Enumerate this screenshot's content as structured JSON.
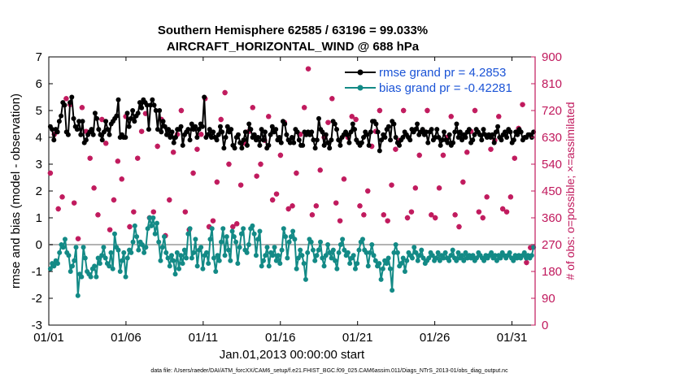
{
  "chart_data": {
    "type": "line",
    "title": "Southern Hemisphere 62585 / 63196 = 99.033%",
    "subtitle": "AIRCRAFT_HORIZONTAL_WIND @ 688 hPa",
    "xlabel": "Jan.01,2013 00:00:00 start",
    "ylabel": "rmse and bias (model - observation)",
    "y2label": "# of obs: o=possible; ×=assimilated",
    "footnote": "data file: /Users/raeder/DAI/ATM_forcXX/CAM6_setup/f.e21.FHIST_BGC.f09_025.CAM6assim.011/Diags_NTrS_2013-01/obs_diag_output.nc",
    "xlim": [
      0,
      31.5
    ],
    "ylim": [
      -3,
      7
    ],
    "y2lim": [
      0,
      900
    ],
    "x_ticks": [
      0,
      5,
      10,
      15,
      20,
      25,
      30
    ],
    "x_tick_labels": [
      "01/01",
      "01/06",
      "01/11",
      "01/16",
      "01/21",
      "01/26",
      "01/31"
    ],
    "y_ticks": [
      -3,
      -2,
      -1,
      0,
      1,
      2,
      3,
      4,
      5,
      6,
      7
    ],
    "y2_ticks": [
      0,
      90,
      180,
      270,
      360,
      450,
      540,
      630,
      720,
      810,
      900
    ],
    "colors": {
      "rmse": "#000000",
      "bias": "#138a86",
      "obs": "#c0185c",
      "zero_line": "#b3b3b3",
      "legend_text": "#1a53d6"
    },
    "series": [
      {
        "name": "rmse grand pr = 4.2853",
        "values": [
          4.4,
          4.3,
          3.9,
          4.3,
          4.2,
          4.6,
          4.8,
          5.3,
          5.2,
          4.2,
          4.1,
          5.3,
          5.5,
          4.7,
          4.4,
          4.3,
          4.6,
          4.1,
          4.6,
          3.8,
          3.9,
          4.1,
          4.2,
          4.3,
          4.1,
          4.9,
          4.7,
          4.3,
          4.1,
          3.9,
          4.2,
          4.6,
          4.3,
          4.1,
          4.5,
          4.6,
          4.7,
          4.8,
          5.4,
          4.0,
          4.1,
          4.0,
          4.0,
          4.9,
          4.4,
          4.7,
          5.0,
          4.6,
          4.8,
          4.9,
          5.3,
          5.1,
          5.4,
          5.3,
          5.2,
          4.3,
          5.2,
          5.4,
          5.2,
          5.0,
          4.3,
          5.0,
          4.2,
          4.6,
          4.4,
          4.1,
          4.3,
          4.0,
          4.2,
          3.8,
          4.0,
          4.3,
          4.3,
          4.4,
          3.7,
          4.1,
          4.2,
          4.3,
          3.9,
          4.5,
          4.3,
          4.4,
          4.0,
          4.3,
          4.5,
          4.4,
          5.5,
          4.0,
          4.1,
          4.3,
          4.0,
          4.2,
          4.0,
          3.9,
          4.1,
          4.4,
          4.2,
          3.6,
          4.0,
          4.4,
          4.2,
          4.3,
          3.7,
          3.6,
          4.0,
          4.1,
          3.8,
          3.6,
          3.9,
          4.2,
          3.7,
          4.5,
          4.3,
          4.0,
          4.1,
          3.9,
          4.0,
          3.7,
          4.3,
          3.9,
          4.2,
          3.6,
          3.7,
          4.1,
          4.4,
          4.2,
          4.3,
          3.9,
          4.0,
          3.8,
          4.6,
          4.5,
          4.1,
          3.9,
          3.8,
          4.0,
          3.8,
          4.3,
          4.2,
          3.9,
          3.7,
          3.7,
          4.2,
          4.1,
          4.2,
          4.1,
          4.2,
          3.9,
          3.6,
          3.9,
          4.7,
          4.3,
          4.2,
          3.7,
          4.1,
          3.8,
          3.6,
          3.9,
          4.6,
          4.5,
          4.3,
          3.9,
          3.7,
          4.0,
          4.1,
          4.2,
          4.1,
          3.8,
          4.2,
          4.5,
          4.3,
          3.9,
          3.8,
          3.7,
          3.8,
          4.0,
          4.2,
          4.1,
          3.7,
          4.2,
          4.6,
          4.6,
          4.5,
          4.2,
          3.5,
          3.9,
          4.1,
          4.0,
          4.3,
          4.4,
          3.9,
          4.6,
          4.5,
          4.0,
          3.8,
          3.7,
          3.9,
          4.0,
          4.2,
          4.1,
          4.0,
          3.9,
          4.3,
          4.2,
          4.3,
          4.5,
          4.1,
          4.2,
          4.3,
          4.1,
          4.2,
          3.8,
          4.2,
          4.3,
          3.9,
          4.0,
          4.3,
          4.0,
          3.7,
          3.9,
          4.2,
          3.9,
          3.8,
          4.1,
          3.7,
          3.8,
          4.2,
          4.5,
          4.0,
          4.2,
          3.9,
          4.1,
          4.0,
          4.2,
          4.3,
          3.8,
          3.9,
          4.1,
          4.3,
          4.2,
          4.1,
          3.9,
          4.3,
          4.1,
          4.0,
          4.1,
          4.0,
          4.1,
          3.8,
          4.2,
          4.4,
          4.0,
          3.9,
          4.1,
          4.2,
          4.0,
          4.3,
          4.2,
          3.8,
          3.9,
          4.2,
          4.1,
          4.3,
          4.2,
          3.9,
          4.0,
          4.0,
          4.1,
          4.1,
          4.0,
          4.2
        ]
      },
      {
        "name": "bias grand pr = -0.42281",
        "values": [
          -0.9,
          -0.7,
          -0.8,
          -0.6,
          -0.7,
          -0.3,
          0.0,
          -0.1,
          0.2,
          -0.3,
          -0.4,
          -1.0,
          -0.8,
          -0.6,
          -0.1,
          -1.9,
          -1.1,
          -1.2,
          -0.1,
          -0.5,
          -1.0,
          -1.1,
          -1.2,
          -0.9,
          -0.8,
          -1.2,
          -0.5,
          -0.7,
          -0.4,
          -0.1,
          -0.5,
          -0.7,
          -0.8,
          -0.3,
          -0.9,
          0.4,
          -0.1,
          -0.2,
          -1.0,
          -0.6,
          -0.3,
          -1.2,
          -0.5,
          -0.2,
          -0.3,
          0.1,
          0.7,
          0.3,
          -0.2,
          0.1,
          0.0,
          -0.3,
          -0.1,
          0.6,
          1.0,
          0.7,
          1.0,
          0.4,
          0.8,
          0.1,
          -0.6,
          -0.1,
          0.3,
          -0.3,
          -0.5,
          -0.8,
          -0.4,
          -0.6,
          -1.1,
          -0.3,
          -0.9,
          -0.4,
          -0.7,
          -0.2,
          -0.5,
          0.4,
          0.6,
          -0.5,
          -0.3,
          0.2,
          -0.8,
          -0.2,
          -0.1,
          -0.9,
          -0.4,
          -0.3,
          -0.7,
          0.2,
          0.6,
          -0.5,
          -1.0,
          -0.4,
          -0.6,
          0.1,
          0.6,
          -0.4,
          0.3,
          -0.2,
          -0.6,
          0.5,
          0.3,
          0.1,
          -0.7,
          -0.1,
          0.4,
          0.6,
          -0.2,
          -0.3,
          0.0,
          0.6,
          0.7,
          0.4,
          -0.4,
          0.2,
          0.5,
          -0.8,
          -0.6,
          -0.4,
          -0.1,
          -0.8,
          -0.3,
          -0.4,
          -0.1,
          -0.6,
          -0.4,
          -0.7,
          -0.2,
          0.6,
          0.3,
          -0.5,
          0.1,
          0.3,
          0.5,
          0.2,
          -0.9,
          -0.5,
          -0.2,
          -0.4,
          -0.7,
          -1.3,
          -0.3,
          0.2,
          0.1,
          -0.2,
          -0.6,
          -0.4,
          -0.2,
          0.1,
          -0.5,
          -0.8,
          -0.4,
          0.0,
          -0.3,
          -0.5,
          -0.2,
          -0.6,
          -0.9,
          -0.3,
          0.0,
          0.2,
          -0.2,
          -0.4,
          -0.3,
          -0.7,
          -0.5,
          -0.4,
          -0.9,
          -0.7,
          -0.2,
          0.1,
          0.2,
          -0.2,
          -0.3,
          -0.8,
          -0.3,
          0.0,
          -0.4,
          -0.6,
          -0.8,
          -0.7,
          -1.3,
          -0.9,
          -0.6,
          -0.7,
          -0.5,
          -0.9,
          -1.7,
          -0.3,
          0.0,
          -0.3,
          -0.8,
          -0.7,
          -0.5,
          -1.0,
          -0.6,
          -0.3,
          -0.4,
          -0.5,
          -0.1,
          -0.3,
          -0.6,
          -0.4,
          -0.2,
          -0.5,
          -0.7,
          -0.6,
          -0.5,
          -0.3,
          -0.4,
          -0.6,
          -0.5,
          -0.3,
          -0.6,
          -0.4,
          -0.5,
          -0.3,
          -0.5,
          -0.6,
          -0.4,
          -0.2,
          -0.5,
          -0.6,
          -0.3,
          -0.5,
          -0.4,
          -0.6,
          -0.3,
          -0.5,
          -0.4,
          -0.5,
          -0.4,
          -0.6,
          -0.5,
          -0.3,
          -0.4,
          -0.5,
          -0.6,
          -0.4,
          -0.5,
          -0.4,
          -0.3,
          -0.5,
          -0.4,
          -0.6,
          -0.4,
          -0.5,
          -0.3,
          -0.4,
          -0.5,
          -0.4,
          -0.3,
          -0.5,
          -0.6,
          -0.4,
          -0.5,
          -0.4,
          -0.5,
          -0.4,
          -0.3,
          -0.5,
          -0.4,
          -0.5,
          -0.4,
          -0.1
        ]
      },
      {
        "name": "obs count",
        "values": [
          510,
          640,
          390,
          430,
          760,
          740,
          410,
          290,
          730,
          650,
          560,
          460,
          370,
          690,
          610,
          320,
          420,
          550,
          490,
          700,
          330,
          380,
          560,
          650,
          710,
          360,
          380,
          600,
          690,
          300,
          420,
          580,
          640,
          720,
          380,
          320,
          510,
          590,
          640,
          760,
          330,
          350,
          480,
          690,
          780,
          540,
          330,
          340,
          470,
          610,
          650,
          730,
          500,
          540,
          620,
          700,
          420,
          440,
          570,
          680,
          390,
          400,
          510,
          640,
          730,
          860,
          370,
          400,
          520,
          630,
          680,
          760,
          410,
          350,
          490,
          630,
          700,
          690,
          400,
          370,
          450,
          600,
          650,
          720,
          370,
          350,
          470,
          590,
          620,
          720,
          360,
          380,
          460,
          570,
          650,
          720,
          370,
          360,
          460,
          570,
          630,
          700,
          370,
          330,
          480,
          580,
          650,
          720,
          380,
          360,
          430,
          590,
          620,
          700,
          390,
          380,
          430,
          560,
          660,
          740,
          210,
          260
        ]
      }
    ]
  }
}
